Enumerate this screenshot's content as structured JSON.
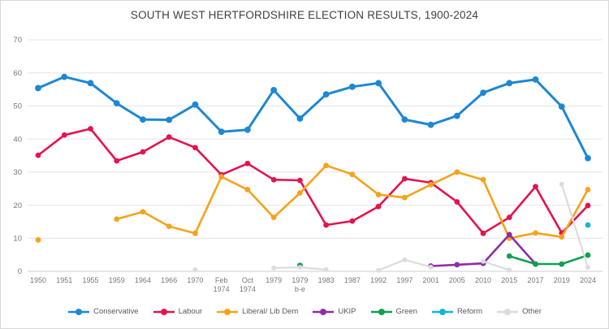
{
  "window": {
    "title": "SOUTH WEST HERTFORDSHIRE ELECTION RESULTS, 1900-2024"
  },
  "chart_data": {
    "type": "line",
    "title": "SOUTH WEST HERTFORDSHIRE ELECTION RESULTS, 1900-2024",
    "xlabel": "",
    "ylabel": "",
    "ylim": [
      0,
      70
    ],
    "ytick_step": 10,
    "grid": true,
    "legend_position": "bottom",
    "categories": [
      "1950",
      "1951",
      "1955",
      "1959",
      "1964",
      "1966",
      "1970",
      "Feb 1974",
      "Oct 1974",
      "1979",
      "1979 b-e",
      "1983",
      "1987",
      "1992",
      "1997",
      "2001",
      "2005",
      "2010",
      "2015",
      "2017",
      "2019",
      "2024"
    ],
    "series": [
      {
        "name": "Conservative",
        "color": "#1e87d3",
        "values": [
          55.4,
          58.8,
          56.9,
          50.8,
          45.9,
          45.8,
          50.4,
          42.2,
          42.8,
          54.8,
          46.2,
          53.5,
          55.8,
          56.9,
          45.9,
          44.3,
          47.0,
          54.0,
          56.9,
          58.0,
          49.8,
          34.2
        ]
      },
      {
        "name": "Labour",
        "color": "#e4134e",
        "values": [
          35.1,
          41.2,
          43.1,
          33.4,
          36.1,
          40.6,
          37.4,
          29.2,
          32.6,
          27.7,
          27.5,
          14.0,
          15.2,
          19.6,
          28.0,
          26.8,
          21.0,
          11.5,
          16.3,
          25.6,
          11.6,
          19.9
        ]
      },
      {
        "name": "Liberal/ Lib Dem",
        "color": "#f5a31d",
        "values": [
          9.5,
          null,
          null,
          15.8,
          18.0,
          13.6,
          11.5,
          28.6,
          24.7,
          16.3,
          23.7,
          32.0,
          29.3,
          23.2,
          22.3,
          26.2,
          30.0,
          27.7,
          10.0,
          11.6,
          10.4,
          24.7
        ]
      },
      {
        "name": "UKIP",
        "color": "#8e2da5",
        "values": [
          null,
          null,
          null,
          null,
          null,
          null,
          null,
          null,
          null,
          null,
          null,
          null,
          null,
          null,
          null,
          1.6,
          2.0,
          2.4,
          11.1,
          2.2,
          null,
          null
        ]
      },
      {
        "name": "Green",
        "color": "#0fa052",
        "values": [
          null,
          null,
          null,
          null,
          null,
          null,
          null,
          null,
          null,
          null,
          1.8,
          null,
          null,
          null,
          null,
          null,
          null,
          null,
          4.6,
          2.2,
          2.2,
          4.9
        ]
      },
      {
        "name": "Reform",
        "color": "#17b5d5",
        "values": [
          null,
          null,
          null,
          null,
          null,
          null,
          null,
          null,
          null,
          null,
          null,
          null,
          null,
          null,
          null,
          null,
          null,
          null,
          null,
          null,
          null,
          14.0
        ]
      },
      {
        "name": "Other",
        "color": "#dcdcdc",
        "values": [
          null,
          null,
          null,
          null,
          null,
          null,
          0.5,
          null,
          null,
          1.0,
          1.2,
          0.5,
          null,
          0.3,
          3.5,
          1.3,
          null,
          3.0,
          0.4,
          null,
          26.3,
          1.2
        ]
      }
    ],
    "ytick_labels": [
      "0",
      "10",
      "20",
      "30",
      "40",
      "50",
      "60",
      "70"
    ]
  }
}
